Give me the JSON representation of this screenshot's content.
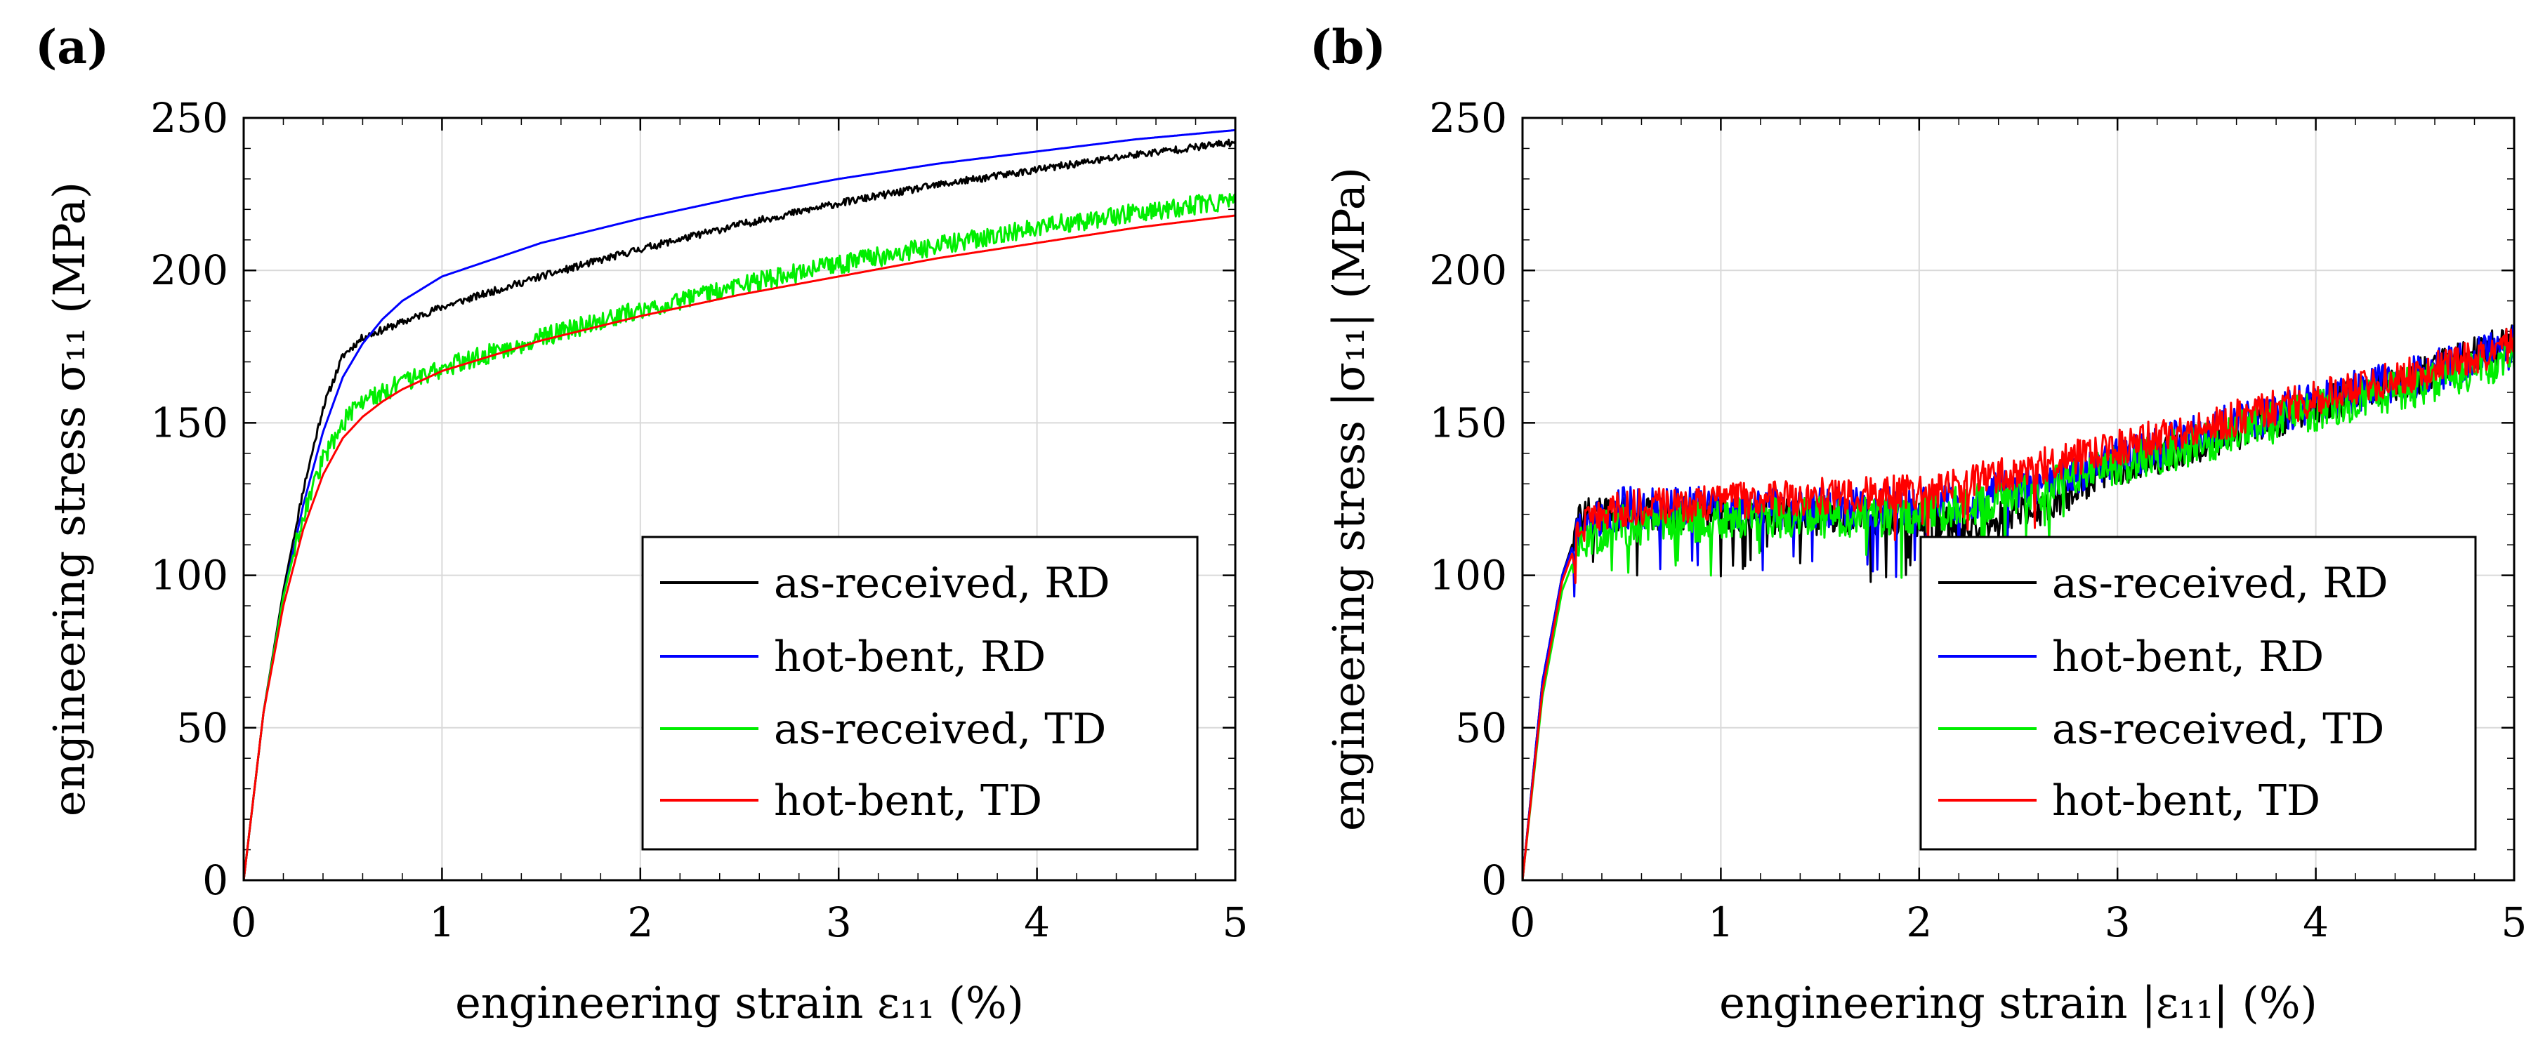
{
  "chart_data": [
    {
      "type": "line",
      "panel_label": "(a)",
      "xlabel": "engineering strain ε₁₁ (%)",
      "ylabel": "engineering stress σ₁₁ (MPa)",
      "xlim": [
        0,
        5
      ],
      "ylim": [
        0,
        250
      ],
      "xticks": [
        "0",
        "1",
        "2",
        "3",
        "4",
        "5"
      ],
      "yticks": [
        "0",
        "50",
        "100",
        "150",
        "200",
        "250"
      ],
      "grid": true,
      "legend_position": "bottom-right",
      "series": [
        {
          "name": "as-received, RD",
          "color": "#000000",
          "noise": 1.2,
          "x": [
            0,
            0.1,
            0.2,
            0.3,
            0.4,
            0.5,
            0.6,
            0.8,
            1.0,
            1.5,
            2.0,
            2.5,
            3.0,
            3.5,
            4.0,
            4.5,
            5.0
          ],
          "y": [
            0,
            55,
            95,
            128,
            155,
            172,
            178,
            183,
            188,
            198,
            207,
            215,
            222,
            228,
            233,
            238,
            242
          ]
        },
        {
          "name": "hot-bent, RD",
          "color": "#0000ff",
          "noise": 0,
          "x": [
            0,
            0.1,
            0.2,
            0.3,
            0.4,
            0.5,
            0.6,
            0.7,
            0.8,
            1.0,
            1.5,
            2.0,
            2.5,
            3.0,
            3.5,
            4.0,
            4.5,
            5.0
          ],
          "y": [
            0,
            55,
            93,
            123,
            147,
            165,
            176,
            184,
            190,
            198,
            209,
            217,
            224,
            230,
            235,
            239,
            243,
            246
          ]
        },
        {
          "name": "as-received, TD",
          "color": "#00ee00",
          "noise": 3.2,
          "x": [
            0,
            0.1,
            0.2,
            0.3,
            0.4,
            0.5,
            0.6,
            0.8,
            1.0,
            1.5,
            2.0,
            2.5,
            3.0,
            3.5,
            4.0,
            4.5,
            5.0
          ],
          "y": [
            0,
            55,
            93,
            120,
            138,
            150,
            157,
            163,
            168,
            178,
            187,
            195,
            202,
            208,
            214,
            219,
            223
          ]
        },
        {
          "name": "hot-bent, TD",
          "color": "#ff0000",
          "noise": 0,
          "x": [
            0,
            0.1,
            0.2,
            0.3,
            0.4,
            0.5,
            0.6,
            0.7,
            0.8,
            1.0,
            1.5,
            2.0,
            2.5,
            3.0,
            3.5,
            4.0,
            4.5,
            5.0
          ],
          "y": [
            0,
            55,
            90,
            115,
            133,
            145,
            152,
            157,
            161,
            167,
            177,
            185,
            192,
            198,
            204,
            209,
            214,
            218
          ]
        }
      ]
    },
    {
      "type": "line",
      "panel_label": "(b)",
      "xlabel": "engineering strain |ε₁₁| (%)",
      "ylabel": "engineering stress |σ₁₁| (MPa)",
      "xlim": [
        0,
        5
      ],
      "ylim": [
        0,
        250
      ],
      "xticks": [
        "0",
        "1",
        "2",
        "3",
        "4",
        "5"
      ],
      "yticks": [
        "0",
        "50",
        "100",
        "150",
        "200",
        "250"
      ],
      "grid": true,
      "legend_position": "bottom-right",
      "series": [
        {
          "name": "as-received, RD",
          "color": "#000000",
          "noise": 6,
          "x": [
            0,
            0.1,
            0.2,
            0.3,
            0.5,
            1.0,
            1.5,
            2.0,
            2.3,
            2.6,
            3.0,
            3.5,
            4.0,
            4.5,
            5.0
          ],
          "y": [
            0,
            65,
            100,
            120,
            120,
            120,
            119,
            118,
            116,
            122,
            135,
            145,
            155,
            165,
            177
          ]
        },
        {
          "name": "hot-bent, RD",
          "color": "#0000ff",
          "noise": 7,
          "x": [
            0,
            0.1,
            0.2,
            0.3,
            0.5,
            1.0,
            1.5,
            2.0,
            2.5,
            3.0,
            3.5,
            4.0,
            4.5,
            5.0
          ],
          "y": [
            0,
            65,
            100,
            118,
            122,
            122,
            122,
            122,
            128,
            138,
            148,
            157,
            165,
            175
          ]
        },
        {
          "name": "as-received, TD",
          "color": "#00ee00",
          "noise": 7,
          "x": [
            0,
            0.1,
            0.2,
            0.3,
            0.5,
            1.0,
            1.5,
            2.0,
            2.5,
            3.0,
            3.5,
            4.0,
            4.5,
            5.0
          ],
          "y": [
            0,
            60,
            95,
            112,
            116,
            118,
            119,
            120,
            126,
            136,
            145,
            154,
            162,
            172
          ]
        },
        {
          "name": "hot-bent, TD",
          "color": "#ff0000",
          "noise": 6,
          "x": [
            0,
            0.1,
            0.2,
            0.3,
            0.5,
            1.0,
            1.5,
            2.0,
            2.5,
            3.0,
            3.5,
            4.0,
            4.5,
            5.0
          ],
          "y": [
            0,
            62,
            98,
            116,
            122,
            124,
            126,
            127,
            134,
            142,
            150,
            158,
            166,
            176
          ]
        }
      ]
    }
  ]
}
